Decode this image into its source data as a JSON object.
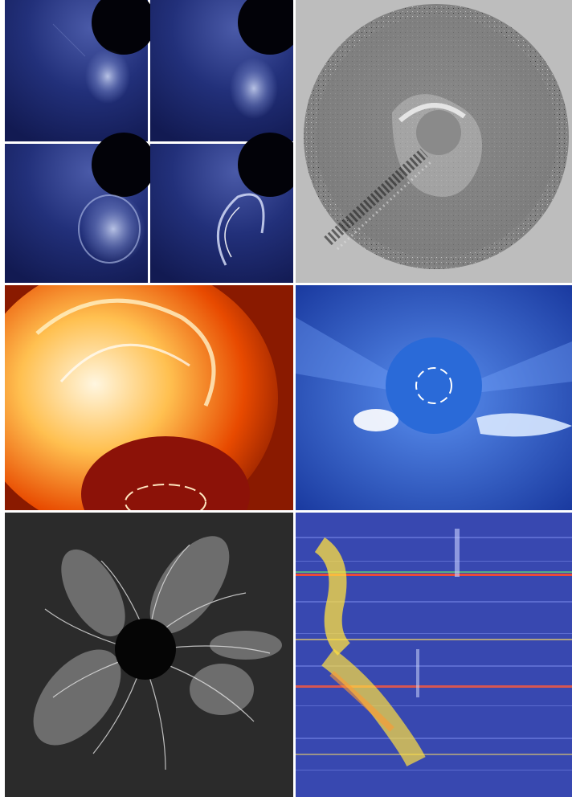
{
  "figure": {
    "panels": [
      {
        "id": "panel-a-sequence",
        "description_icon": "coronagraph-sequence-icon",
        "labels": [
          "",
          "",
          "",
          ""
        ]
      },
      {
        "id": "panel-b-difference",
        "description_icon": "difference-image-icon",
        "stamp": ""
      },
      {
        "id": "panel-c-prominence",
        "description_icon": "prominence-eruption-icon"
      },
      {
        "id": "panel-d-lasco",
        "description_icon": "coronagraph-icon",
        "stamp": ""
      },
      {
        "id": "panel-e-eclipse",
        "description_icon": "solar-eclipse-icon"
      },
      {
        "id": "panel-f-dynamic-spectrum",
        "description_icon": "radio-spectrum-icon"
      }
    ],
    "colors": {
      "sequence_bg": "#1a2668",
      "difference_bg": "#8a8a8a",
      "prominence_bg": "#8a1a00",
      "lasco_bg": "#1a4ab8",
      "eclipse_bg": "#2a2a2a",
      "spectrum_bg": "#3848b0"
    }
  }
}
